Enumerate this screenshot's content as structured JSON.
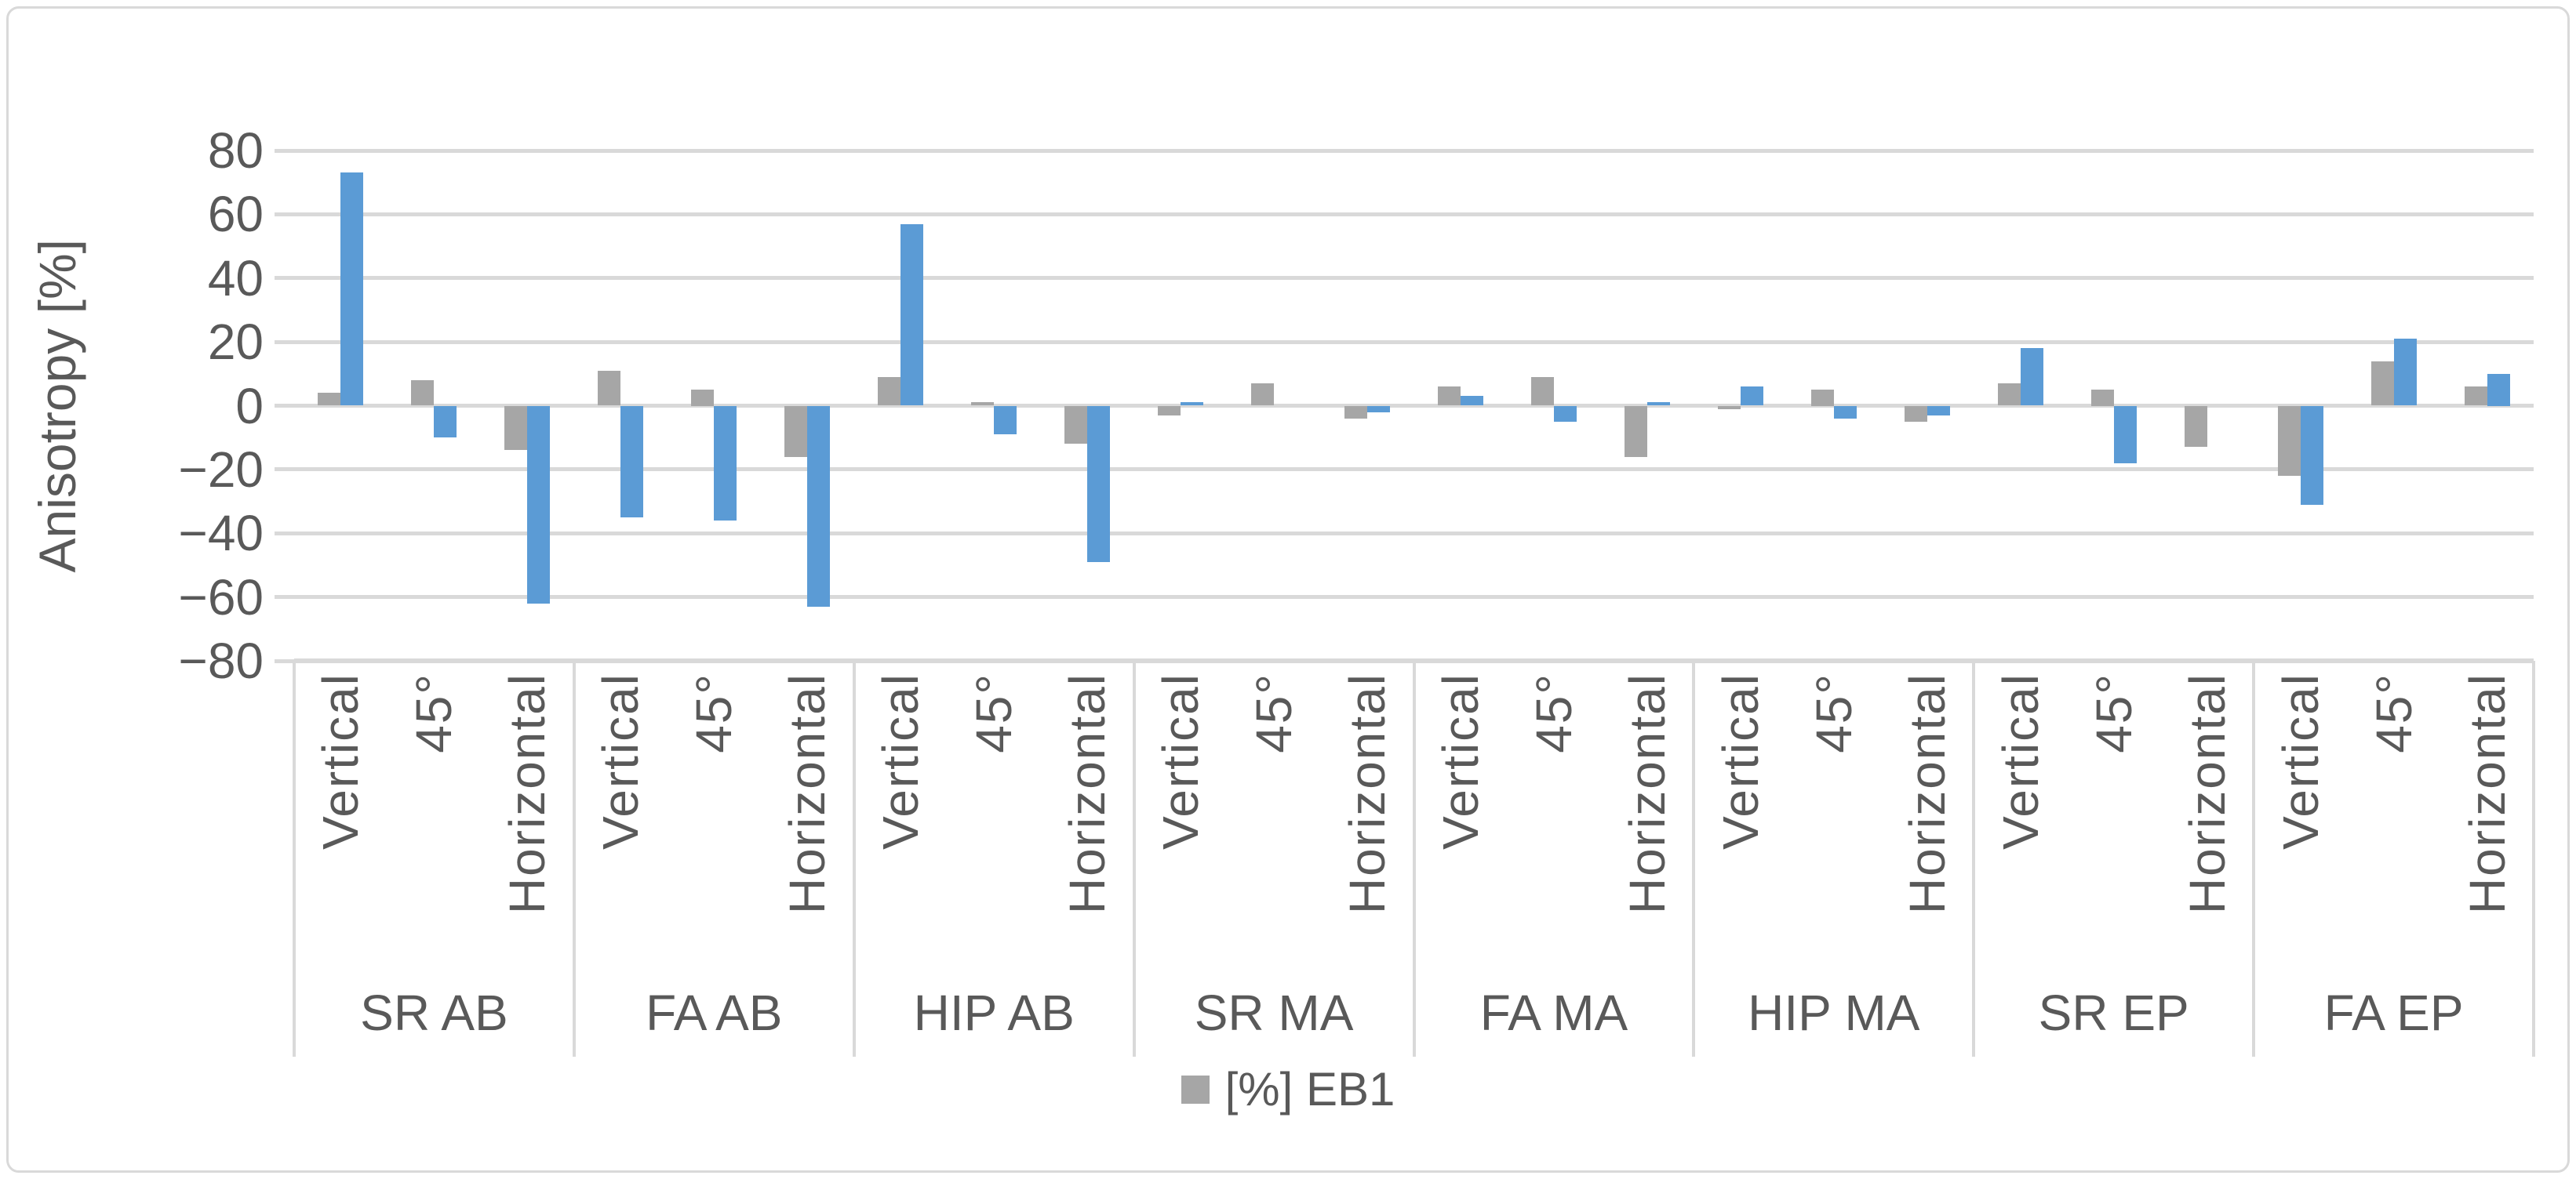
{
  "colors": {
    "series_gray": "#a6a6a6",
    "series_blue": "#5b9bd5",
    "gridline": "#d9d9d9",
    "text": "#595959",
    "border": "#d9d9d9",
    "background": "#ffffff"
  },
  "chart_data": {
    "type": "bar",
    "title": "",
    "ylabel": "Anisotropy [%]",
    "xlabel": "",
    "ylim": [
      -80,
      80
    ],
    "ytick_step": 20,
    "ytick_labels": [
      "80",
      "60",
      "40",
      "20",
      "0",
      "−20",
      "−40",
      "−60",
      "−80"
    ],
    "grid": true,
    "legend_position": "bottom",
    "groups": [
      "SR AB",
      "FA AB",
      "HIP AB",
      "SR MA",
      "FA MA",
      "HIP MA",
      "SR EP",
      "FA EP"
    ],
    "categories": [
      "Vertical",
      "45°",
      "Horizontal"
    ],
    "series": [
      {
        "name": "[%] EB1",
        "color": "#a6a6a6",
        "in_legend": true,
        "values": [
          [
            4,
            8,
            -14
          ],
          [
            11,
            5,
            -16
          ],
          [
            9,
            1,
            -12
          ],
          [
            -3,
            7,
            -4
          ],
          [
            6,
            9,
            -16
          ],
          [
            -1,
            5,
            -5
          ],
          [
            7,
            5,
            -13
          ],
          [
            -22,
            14,
            6
          ]
        ]
      },
      {
        "name": "",
        "color": "#5b9bd5",
        "in_legend": false,
        "values": [
          [
            73,
            -10,
            -62
          ],
          [
            -35,
            -36,
            -63
          ],
          [
            57,
            -9,
            -49
          ],
          [
            1,
            0,
            -2
          ],
          [
            3,
            -5,
            1
          ],
          [
            6,
            -4,
            -3
          ],
          [
            18,
            -18,
            0
          ],
          [
            -31,
            21,
            10
          ]
        ]
      }
    ],
    "legend": {
      "entries": [
        {
          "label": "[%] EB1",
          "color": "#a6a6a6"
        }
      ]
    }
  }
}
